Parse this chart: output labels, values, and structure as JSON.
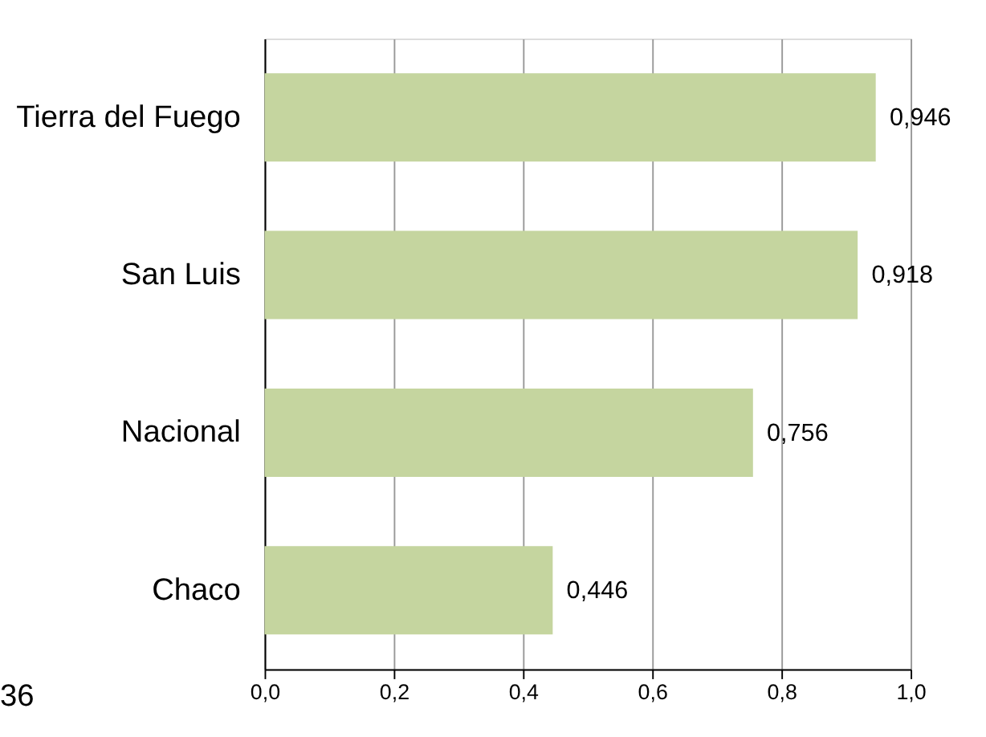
{
  "chart_data": {
    "type": "bar",
    "orientation": "horizontal",
    "categories": [
      "Tierra del Fuego",
      "San Luis",
      "Nacional",
      "Chaco"
    ],
    "values": [
      0.946,
      0.918,
      0.756,
      0.446
    ],
    "color": "#c5d59f",
    "value_labels": [
      "0,946",
      "0,918",
      "0,756",
      "0,446"
    ],
    "xlim": [
      0,
      1.0
    ],
    "xticks": [
      {
        "value": 0,
        "label": "0,0"
      },
      {
        "value": 0.2,
        "label": "0,2"
      },
      {
        "value": 0.4,
        "label": "0,4"
      },
      {
        "value": 0.6,
        "label": "0,6"
      },
      {
        "value": 0.8,
        "label": "0,8"
      },
      {
        "value": 1.0,
        "label": "1,0"
      }
    ],
    "grid": "x",
    "annotations": [
      "36"
    ]
  }
}
